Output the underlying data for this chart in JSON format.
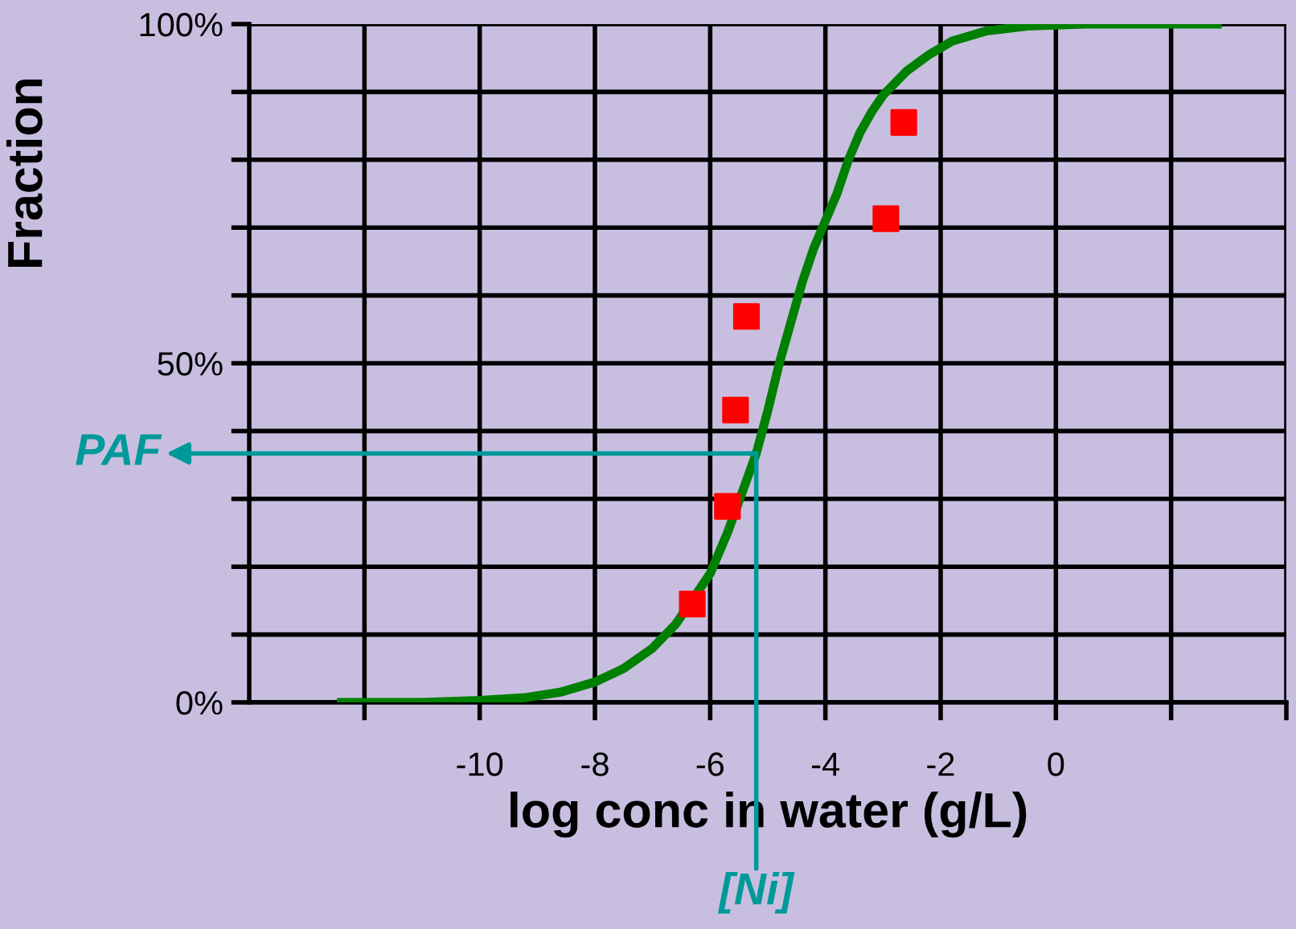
{
  "chart_data": {
    "type": "line",
    "xlabel": "log conc in water (g/L)",
    "ylabel": "Fraction",
    "xlim": [
      -14,
      4
    ],
    "ylim": [
      0,
      100
    ],
    "xticks": [
      {
        "value": -12,
        "label": null
      },
      -10,
      -8,
      -6,
      -4,
      -2,
      0,
      {
        "value": 2,
        "label": null
      },
      {
        "value": 4,
        "label": null
      }
    ],
    "yticks": [
      {
        "value": 0,
        "label": "0%"
      },
      {
        "value": 10,
        "label": null
      },
      {
        "value": 20,
        "label": null
      },
      {
        "value": 30,
        "label": null
      },
      {
        "value": 40,
        "label": null
      },
      {
        "value": 50,
        "label": "50%"
      },
      {
        "value": 60,
        "label": null
      },
      {
        "value": 70,
        "label": null
      },
      {
        "value": 80,
        "label": null
      },
      {
        "value": 90,
        "label": null
      },
      {
        "value": 100,
        "label": "100%"
      }
    ],
    "grid": true,
    "legend": false,
    "series": [
      {
        "color": "#008000",
        "marker": "none",
        "line_style": "solid",
        "x": [
          -12.4,
          -11,
          -10,
          -9.2,
          -8.6,
          -8,
          -7.5,
          -7,
          -6.6,
          -6,
          -5.7,
          -5.4,
          -5.2,
          -5,
          -4.8,
          -4.6,
          -4.4,
          -4.2,
          -4,
          -3.8,
          -3.6,
          -3.4,
          -3.2,
          -3,
          -2.6,
          -2.2,
          -1.8,
          -1.2,
          -0.5,
          0.5,
          2.8
        ],
        "values": [
          0,
          0,
          0.3,
          0.7,
          1.5,
          3,
          5,
          8,
          11.5,
          19,
          25,
          32,
          36.7,
          43,
          50,
          56,
          62,
          67,
          71,
          75,
          80,
          84,
          87,
          89.5,
          93,
          95.5,
          97.5,
          99,
          99.7,
          100,
          100
        ]
      },
      {
        "type": "scatter",
        "color": "#ff0000",
        "marker": "square",
        "x": [
          -6.31,
          -5.7,
          -5.56,
          -5.37,
          -2.95,
          -2.64
        ],
        "values": [
          14.5,
          28.9,
          43.1,
          56.9,
          71.3,
          85.5
        ]
      }
    ],
    "annotations": [
      {
        "text": "PAF",
        "x": -5.2,
        "y": 36.7
      },
      {
        "text": "[Ni]",
        "x": -5.2,
        "y": 36.7
      }
    ]
  }
}
